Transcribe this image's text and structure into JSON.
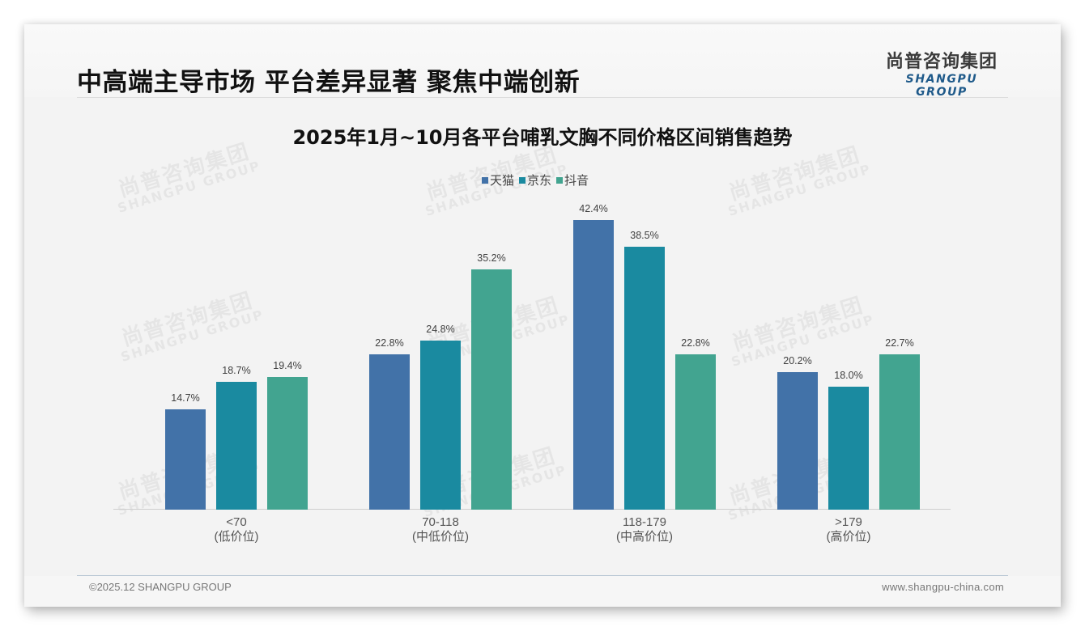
{
  "header": {
    "headline": "中高端主导市场 平台差异显著 聚焦中端创新",
    "logo_cn": "尚普咨询集团",
    "logo_en": "SHANGPU GROUP"
  },
  "watermark": {
    "cn": "尚普咨询集团",
    "en": "SHANGPU GROUP"
  },
  "colors": {
    "tmall": "#4272a8",
    "jd": "#1a8aa0",
    "douyin": "#42a490",
    "background": "#f3f3f3",
    "title": "#111111"
  },
  "legend": [
    {
      "label": "天猫",
      "color": "#4272a8"
    },
    {
      "label": "京东",
      "color": "#1a8aa0"
    },
    {
      "label": "抖音",
      "color": "#42a490"
    }
  ],
  "chart_data": {
    "type": "bar",
    "title": "2025年1月~10月各平台哺乳文胸不同价格区间销售趋势",
    "xlabel": "",
    "ylabel": "",
    "ylim": [
      0,
      47
    ],
    "grid": false,
    "legend_position": "top",
    "categories": [
      "<70 (低价位)",
      "70-118 (中低价位)",
      "118-179 (中高价位)",
      ">179 (高价位)"
    ],
    "category_labels": [
      {
        "range": "<70",
        "tier": "(低价位)"
      },
      {
        "range": "70-118",
        "tier": "(中低价位)"
      },
      {
        "range": "118-179",
        "tier": "(中高价位)"
      },
      {
        "range": ">179",
        "tier": "(高价位)"
      }
    ],
    "series": [
      {
        "name": "天猫",
        "values": [
          14.7,
          22.8,
          42.4,
          20.2
        ],
        "labels": [
          "14.7%",
          "22.8%",
          "42.4%",
          "20.2%"
        ]
      },
      {
        "name": "京东",
        "values": [
          18.7,
          24.8,
          38.5,
          18.0
        ],
        "labels": [
          "18.7%",
          "24.8%",
          "38.5%",
          "18.0%"
        ]
      },
      {
        "name": "抖音",
        "values": [
          19.4,
          35.2,
          22.8,
          22.7
        ],
        "labels": [
          "19.4%",
          "35.2%",
          "22.8%",
          "22.7%"
        ]
      }
    ],
    "unit": "%"
  },
  "footer": {
    "copyright": "©2025.12 SHANGPU GROUP",
    "website": "www.shangpu-china.com"
  }
}
